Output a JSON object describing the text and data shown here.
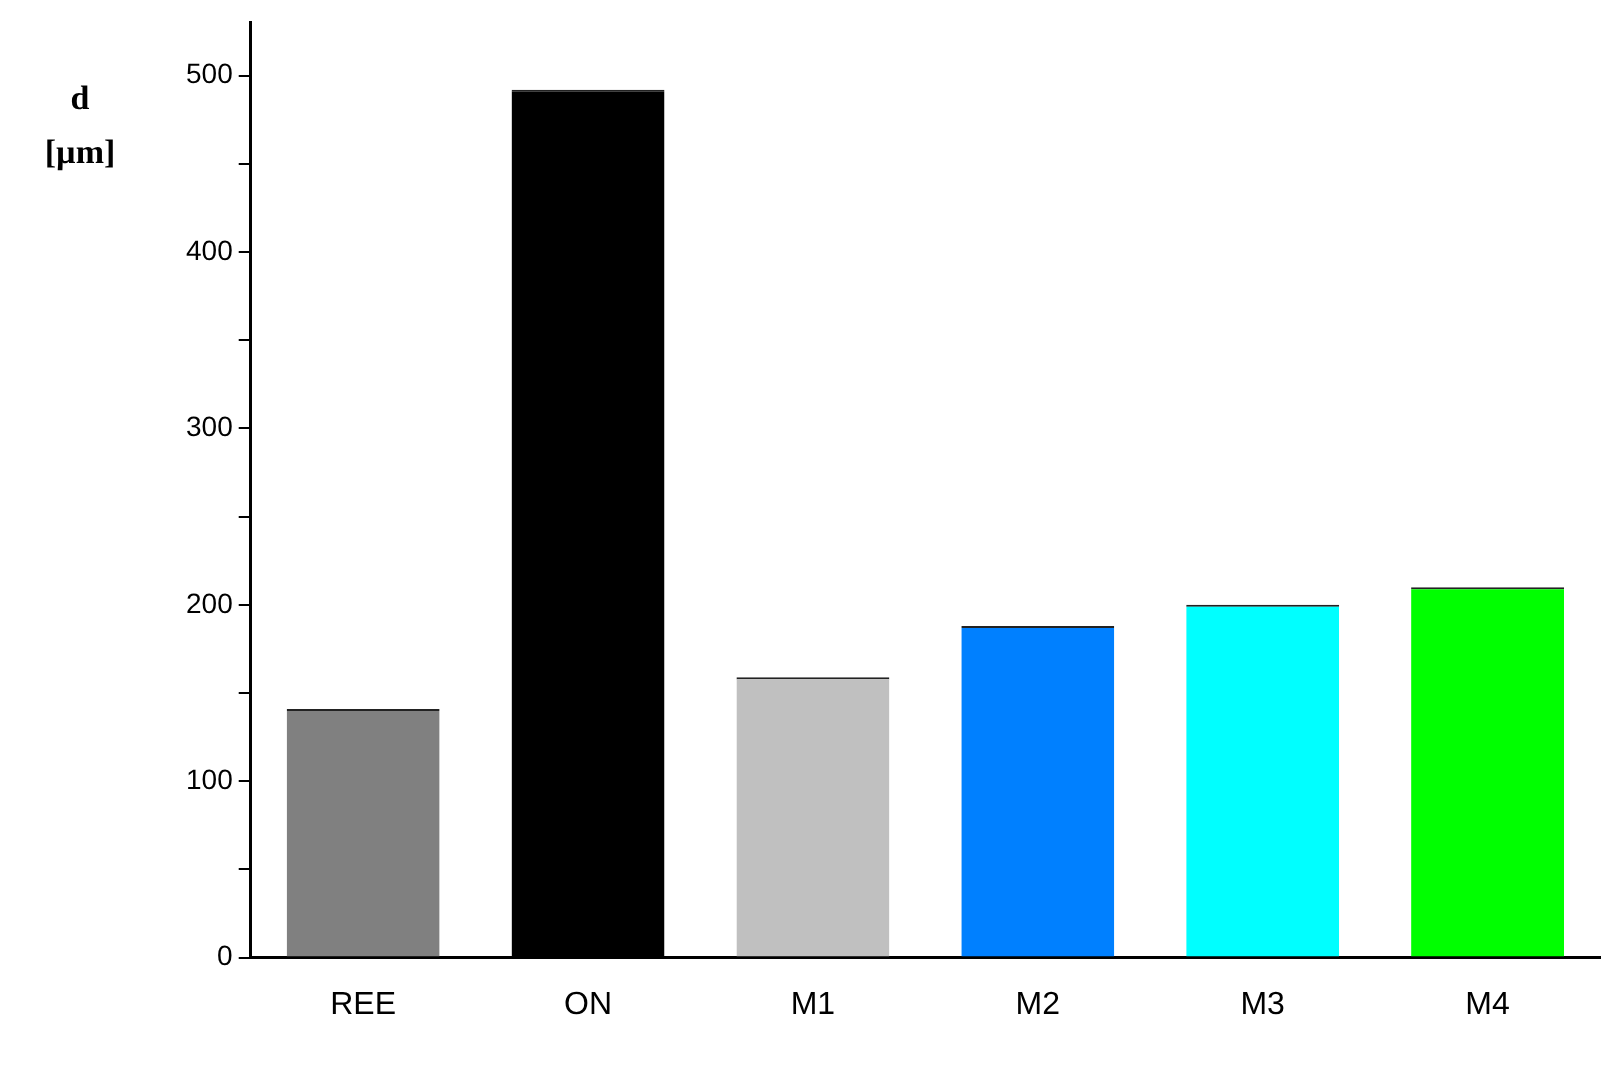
{
  "chart_data": {
    "type": "bar",
    "ylabel": "d [µm]",
    "categories": [
      "REE",
      "ON",
      "M1",
      "M2",
      "M3",
      "M4"
    ],
    "values": [
      141,
      492,
      159,
      188,
      200,
      210
    ],
    "colors": [
      "#808080",
      "#000000",
      "#c0c0c0",
      "#0080ff",
      "#00ffff",
      "#00ff00"
    ],
    "ylim": [
      0,
      530
    ],
    "yticks": [
      0,
      {
        "value": 50,
        "label": null
      },
      100,
      {
        "value": 150,
        "label": null
      },
      200,
      {
        "value": 250,
        "label": null
      },
      300,
      {
        "value": 350,
        "label": null
      },
      400,
      {
        "value": 450,
        "label": null
      },
      500
    ],
    "grid": false,
    "legend": false
  }
}
